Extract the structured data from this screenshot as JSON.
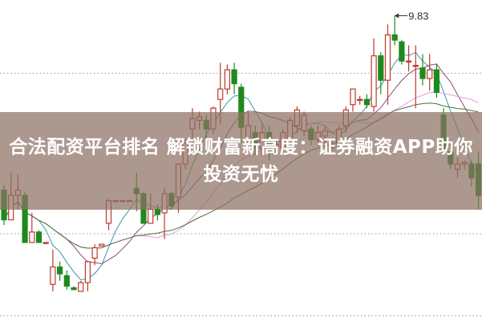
{
  "banner": {
    "title": "合法配资平台排名 解锁财富新高度：证券融资APP助你投资无忧"
  },
  "chart_data": {
    "type": "candlestick",
    "title": "",
    "xlabel": "",
    "ylabel": "",
    "ylim": [
      8.08,
      9.92
    ],
    "grid": "horizontal dotted",
    "gridlines": [
      9.5,
      8.58,
      8.11
    ],
    "annotation": {
      "label": "9.83",
      "candle_index": 56,
      "value": 9.83
    },
    "colors": {
      "up": "#c0392b",
      "down": "#1e8a1e",
      "grid": "#999999"
    },
    "moving_averages": [
      {
        "period": 5,
        "color": "#3b98a8"
      },
      {
        "period": 10,
        "color": "#8a4d6e"
      },
      {
        "period": 20,
        "color": "#e39be3"
      },
      {
        "period": 30,
        "color": "#4a6e3e"
      }
    ],
    "candles": [
      [
        8.83,
        8.66,
        8.86,
        8.63
      ],
      [
        8.66,
        8.8,
        8.93,
        8.66
      ],
      [
        8.8,
        8.83,
        8.92,
        8.72
      ],
      [
        8.8,
        8.53,
        8.82,
        8.53
      ],
      [
        8.53,
        8.59,
        8.7,
        8.53
      ],
      [
        8.59,
        8.53,
        8.6,
        8.53
      ],
      [
        8.53,
        8.53,
        8.53,
        8.52
      ],
      [
        8.29,
        8.39,
        8.49,
        8.25
      ],
      [
        8.39,
        8.35,
        8.42,
        8.31
      ],
      [
        8.34,
        8.28,
        8.37,
        8.26
      ],
      [
        8.27,
        8.26,
        8.28,
        8.26
      ],
      [
        8.25,
        8.3,
        8.31,
        8.25
      ],
      [
        8.3,
        8.42,
        8.425,
        8.25
      ],
      [
        8.44,
        8.5,
        8.52,
        8.4
      ],
      [
        8.51,
        8.52,
        8.52,
        8.51
      ],
      [
        8.64,
        8.77,
        8.78,
        8.6
      ],
      [
        8.77,
        8.77,
        8.77,
        8.77
      ],
      [
        8.77,
        8.77,
        8.77,
        8.77
      ],
      [
        8.77,
        8.77,
        8.77,
        8.77
      ],
      [
        8.84,
        8.81,
        8.93,
        8.71
      ],
      [
        8.81,
        8.64,
        8.82,
        8.64
      ],
      [
        8.64,
        8.72,
        8.81,
        8.64
      ],
      [
        8.72,
        8.69,
        8.75,
        8.655
      ],
      [
        8.7,
        8.81,
        8.84,
        8.55
      ],
      [
        8.81,
        8.74,
        8.82,
        8.72
      ],
      [
        8.79,
        8.98,
        8.98,
        8.7
      ],
      [
        8.98,
        9.1,
        9.12,
        8.95
      ],
      [
        9.18,
        9.24,
        9.3,
        9.1
      ],
      [
        9.23,
        9.25,
        9.28,
        9.18
      ],
      [
        9.23,
        9.18,
        9.26,
        9.12
      ],
      [
        9.18,
        9.3,
        9.31,
        9.15
      ],
      [
        9.35,
        9.41,
        9.56,
        9.21
      ],
      [
        9.41,
        9.52,
        9.55,
        9.38
      ],
      [
        9.52,
        9.44,
        9.56,
        9.38
      ],
      [
        9.42,
        9.19,
        9.44,
        9.1
      ],
      [
        9.12,
        9.2,
        9.28,
        9.05
      ],
      [
        9.16,
        9.07,
        9.2,
        9.03
      ],
      [
        9.07,
        9.16,
        9.22,
        9.03
      ],
      [
        9.16,
        9.05,
        9.2,
        9.0
      ],
      [
        9.08,
        9.09,
        9.12,
        9.03
      ],
      [
        9.07,
        9.16,
        9.18,
        9.05
      ],
      [
        9.08,
        9.23,
        9.25,
        9.05
      ],
      [
        9.2,
        9.29,
        9.31,
        9.16
      ],
      [
        9.17,
        9.26,
        9.28,
        9.14
      ],
      [
        9.18,
        9.12,
        9.2,
        9.09
      ],
      [
        9.12,
        9.16,
        9.2,
        9.08
      ],
      [
        9.14,
        9.17,
        9.2,
        9.1
      ],
      [
        9.08,
        9.08,
        9.12,
        9.06
      ],
      [
        9.09,
        9.18,
        9.2,
        9.07
      ],
      [
        9.2,
        9.29,
        9.31,
        9.16
      ],
      [
        9.32,
        9.41,
        9.41,
        9.28
      ],
      [
        9.35,
        9.35,
        9.37,
        9.32
      ],
      [
        9.35,
        9.32,
        9.38,
        9.3
      ],
      [
        9.31,
        9.6,
        9.7,
        9.28
      ],
      [
        9.6,
        9.46,
        9.62,
        9.38
      ],
      [
        9.46,
        9.72,
        9.78,
        9.32
      ],
      [
        9.72,
        9.69,
        9.83,
        9.66
      ],
      [
        9.68,
        9.57,
        9.69,
        9.55
      ],
      [
        9.565,
        9.57,
        9.66,
        9.51
      ],
      [
        9.54,
        9.545,
        9.66,
        9.3
      ],
      [
        9.53,
        9.47,
        9.61,
        9.43
      ],
      [
        9.47,
        9.52,
        9.61,
        9.4
      ],
      [
        9.52,
        9.39,
        9.55,
        9.36
      ],
      [
        9.26,
        9.05,
        9.3,
        9.03
      ],
      [
        9.05,
        8.98,
        9.1,
        8.95
      ],
      [
        8.95,
        8.98,
        9.02,
        8.9
      ],
      [
        8.98,
        8.99,
        9.0,
        8.95
      ],
      [
        8.98,
        8.9,
        9.0,
        8.85
      ],
      [
        8.98,
        8.8,
        9.05,
        8.72
      ]
    ]
  }
}
